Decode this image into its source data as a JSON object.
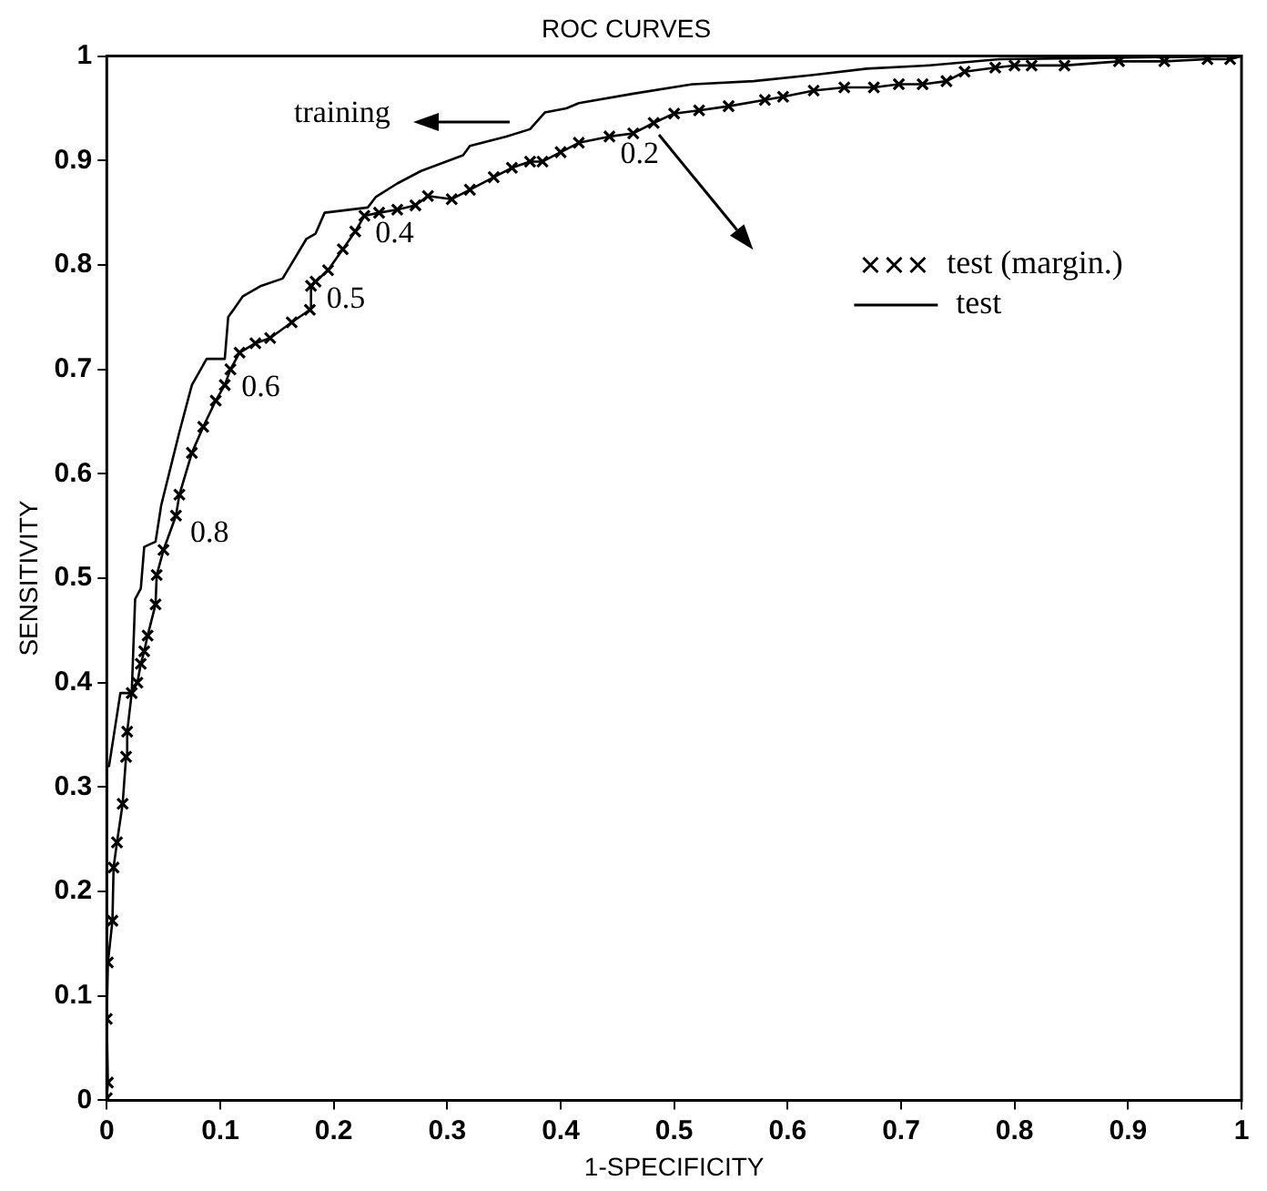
{
  "chart_data": {
    "type": "line",
    "title": "ROC CURVES",
    "xlabel": "1-SPECIFICITY",
    "ylabel": "SENSITIVITY",
    "xlim": [
      0,
      1
    ],
    "ylim": [
      0,
      1
    ],
    "xticks": [
      0,
      0.1,
      0.2,
      0.3,
      0.4,
      0.5,
      0.6,
      0.7,
      0.8,
      0.9,
      1
    ],
    "yticks": [
      0,
      0.1,
      0.2,
      0.3,
      0.4,
      0.5,
      0.6,
      0.7,
      0.8,
      0.9,
      1
    ],
    "grid": false,
    "legend": "right",
    "line_style": "solid",
    "series": [
      {
        "color": "#000000",
        "marker": "none",
        "x": [
          0,
          0,
          0.002,
          0.012,
          0.022,
          0.025,
          0.03,
          0.033,
          0.043,
          0.048,
          0.064,
          0.075,
          0.088,
          0.104,
          0.107,
          0.12,
          0.136,
          0.155,
          0.176,
          0.184,
          0.192,
          0.23,
          0.237,
          0.256,
          0.277,
          0.314,
          0.32,
          0.352,
          0.373,
          0.386,
          0.405,
          0.416,
          0.464,
          0.516,
          0.57,
          0.623,
          0.67,
          0.723,
          0.755,
          0.787,
          0.86,
          1
        ],
        "values": [
          0,
          0.32,
          0.32,
          0.39,
          0.39,
          0.48,
          0.49,
          0.53,
          0.535,
          0.57,
          0.64,
          0.685,
          0.71,
          0.71,
          0.75,
          0.77,
          0.78,
          0.787,
          0.825,
          0.83,
          0.85,
          0.855,
          0.865,
          0.878,
          0.89,
          0.905,
          0.914,
          0.923,
          0.93,
          0.946,
          0.95,
          0.955,
          0.964,
          0.973,
          0.976,
          0.982,
          0.988,
          0.991,
          0.994,
          0.997,
          0.998,
          1
        ]
      },
      {
        "type": "scatter",
        "name": "test (margin.)",
        "color": "#000000",
        "marker": "cross",
        "x": [
          0,
          0.001,
          0,
          0.001,
          0.005,
          0.006,
          0.009,
          0.014,
          0.017,
          0.018,
          0.022,
          0.027,
          0.03,
          0.033,
          0.036,
          0.043,
          0.044,
          0.05,
          0.061,
          0.064,
          0.075,
          0.085,
          0.096,
          0.104,
          0.109,
          0.117,
          0.131,
          0.144,
          0.163,
          0.179,
          0.18,
          0.184,
          0.195,
          0.208,
          0.219,
          0.227,
          0.24,
          0.256,
          0.272,
          0.283,
          0.304,
          0.32,
          0.341,
          0.357,
          0.373,
          0.384,
          0.4,
          0.416,
          0.443,
          0.464,
          0.482,
          0.5,
          0.522,
          0.548,
          0.58,
          0.596,
          0.623,
          0.65,
          0.676,
          0.698,
          0.719,
          0.74,
          0.756,
          0.783,
          0.8,
          0.815,
          0.844,
          0.892,
          0.932,
          0.97,
          0.99
        ],
        "values": [
          0.002,
          0.017,
          0.078,
          0.132,
          0.172,
          0.223,
          0.247,
          0.284,
          0.329,
          0.353,
          0.39,
          0.4,
          0.418,
          0.43,
          0.445,
          0.475,
          0.503,
          0.527,
          0.56,
          0.58,
          0.62,
          0.645,
          0.67,
          0.685,
          0.7,
          0.716,
          0.725,
          0.73,
          0.745,
          0.757,
          0.78,
          0.784,
          0.795,
          0.815,
          0.832,
          0.847,
          0.85,
          0.853,
          0.857,
          0.866,
          0.863,
          0.872,
          0.884,
          0.893,
          0.899,
          0.899,
          0.908,
          0.917,
          0.923,
          0.926,
          0.936,
          0.945,
          0.948,
          0.952,
          0.958,
          0.961,
          0.967,
          0.97,
          0.97,
          0.973,
          0.973,
          0.976,
          0.985,
          0.989,
          0.991,
          0.991,
          0.991,
          0.995,
          0.995,
          0.997,
          0.997
        ]
      },
      {
        "name": "test",
        "color": "#000000",
        "marker": "none",
        "x": [
          0,
          0.001,
          0,
          0.001,
          0.005,
          0.006,
          0.009,
          0.014,
          0.017,
          0.018,
          0.022,
          0.027,
          0.03,
          0.033,
          0.036,
          0.043,
          0.044,
          0.05,
          0.061,
          0.064,
          0.075,
          0.085,
          0.096,
          0.104,
          0.109,
          0.117,
          0.131,
          0.144,
          0.163,
          0.179,
          0.18,
          0.184,
          0.195,
          0.208,
          0.219,
          0.227,
          0.24,
          0.256,
          0.272,
          0.283,
          0.304,
          0.32,
          0.341,
          0.357,
          0.373,
          0.384,
          0.4,
          0.416,
          0.443,
          0.464,
          0.482,
          0.5,
          0.522,
          0.548,
          0.58,
          0.596,
          0.623,
          0.65,
          0.676,
          0.698,
          0.719,
          0.74,
          0.756,
          0.783,
          0.8,
          0.815,
          0.844,
          0.892,
          0.932,
          0.97,
          0.99,
          1
        ],
        "values": [
          0.002,
          0.017,
          0.078,
          0.132,
          0.172,
          0.223,
          0.247,
          0.284,
          0.329,
          0.353,
          0.39,
          0.4,
          0.418,
          0.43,
          0.445,
          0.475,
          0.503,
          0.527,
          0.56,
          0.58,
          0.62,
          0.645,
          0.67,
          0.685,
          0.7,
          0.716,
          0.725,
          0.73,
          0.745,
          0.757,
          0.78,
          0.784,
          0.795,
          0.815,
          0.832,
          0.847,
          0.85,
          0.853,
          0.857,
          0.866,
          0.863,
          0.872,
          0.884,
          0.893,
          0.899,
          0.899,
          0.908,
          0.917,
          0.923,
          0.926,
          0.936,
          0.945,
          0.948,
          0.952,
          0.958,
          0.961,
          0.967,
          0.97,
          0.97,
          0.973,
          0.973,
          0.976,
          0.985,
          0.989,
          0.991,
          0.991,
          0.991,
          0.995,
          0.995,
          0.997,
          0.997,
          1
        ]
      }
    ],
    "annotations": [
      "training",
      {
        "text": "0.2",
        "x": 0.443,
        "y": 0.923
      },
      {
        "text": "0.4",
        "x": 0.227,
        "y": 0.847
      },
      {
        "text": "0.5",
        "x": 0.184,
        "y": 0.784
      },
      {
        "text": "0.6",
        "x": 0.109,
        "y": 0.7
      },
      {
        "text": "0.8",
        "x": 0.064,
        "y": 0.56
      }
    ]
  }
}
